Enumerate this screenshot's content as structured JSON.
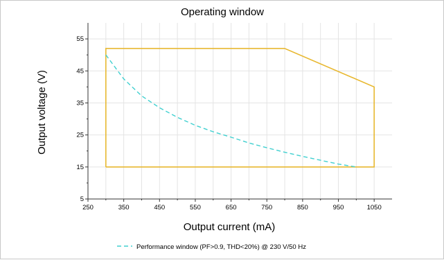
{
  "chart_data": {
    "type": "line",
    "title": "Operating window",
    "xlabel": "Output current (mA)",
    "ylabel": "Output voltage (V)",
    "xlim": [
      250,
      1100
    ],
    "ylim": [
      5,
      60
    ],
    "x_ticks": [
      250,
      350,
      450,
      550,
      650,
      750,
      850,
      950,
      1050
    ],
    "x_minor_ticks": [
      300,
      400,
      500,
      600,
      700,
      800,
      900,
      1000
    ],
    "y_ticks": [
      5,
      15,
      25,
      35,
      45,
      55
    ],
    "y_minor_ticks": [
      10,
      20,
      30,
      40,
      50
    ],
    "grid": true,
    "legend_position": "bottom",
    "series": [
      {
        "style": "solid",
        "color": "#e8b830",
        "x": [
          300,
          300,
          800,
          1050,
          1050,
          300
        ],
        "y": [
          15,
          52,
          52,
          40,
          15,
          15
        ]
      },
      {
        "name": "Performance window (PF>0.9, THD<20%) @ 230 V/50 Hz",
        "style": "dashed",
        "color": "#40d0d0",
        "x": [
          300,
          350,
          400,
          450,
          500,
          550,
          600,
          650,
          700,
          750,
          800,
          850,
          900,
          950,
          1000
        ],
        "y": [
          50,
          42.5,
          37.2,
          33.5,
          30.5,
          28.0,
          26.0,
          24.3,
          22.5,
          21.0,
          19.6,
          18.3,
          17.1,
          15.9,
          15.0
        ]
      }
    ]
  }
}
